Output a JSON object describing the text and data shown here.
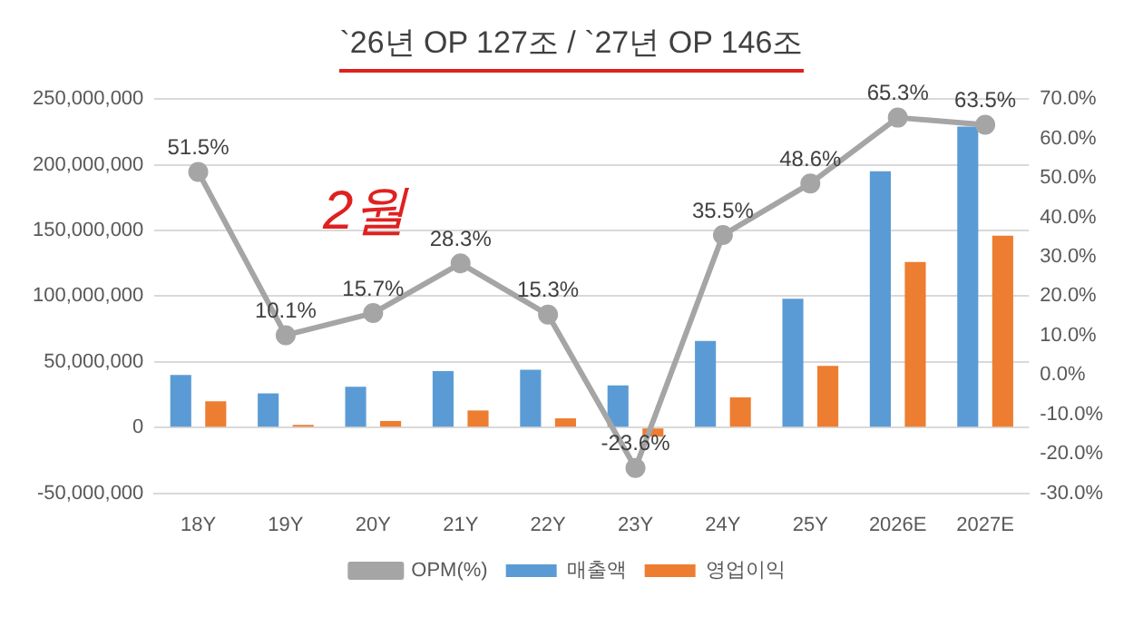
{
  "chart_data": {
    "type": "bar",
    "title": "`26년 OP 127조 / `27년 OP 146조",
    "categories": [
      "18Y",
      "19Y",
      "20Y",
      "21Y",
      "22Y",
      "23Y",
      "24Y",
      "25Y",
      "2026E",
      "2027E"
    ],
    "series": [
      {
        "name": "매출액",
        "color": "#5b9bd5",
        "values": [
          40000000,
          26000000,
          31000000,
          43000000,
          44000000,
          32000000,
          66000000,
          98000000,
          195000000,
          229000000
        ]
      },
      {
        "name": "영업이익",
        "color": "#ed7d31",
        "values": [
          20000000,
          2000000,
          5000000,
          13000000,
          7000000,
          -7000000,
          23000000,
          47000000,
          126000000,
          146000000
        ]
      },
      {
        "name": "OPM(%)",
        "type": "line",
        "axis": "y2",
        "color": "#a5a5a5",
        "marker": "circle",
        "values": [
          51.5,
          10.1,
          15.7,
          28.3,
          15.3,
          -23.6,
          35.5,
          48.6,
          65.3,
          63.5
        ],
        "value_labels": [
          "51.5%",
          "10.1%",
          "15.7%",
          "28.3%",
          "15.3%",
          "-23.6%",
          "35.5%",
          "48.6%",
          "65.3%",
          "63.5%"
        ]
      }
    ],
    "ylim": [
      -50000000,
      250000000
    ],
    "yticks": [
      {
        "value": -50000000,
        "label": "-50,000,000"
      },
      {
        "value": 0,
        "label": "0"
      },
      {
        "value": 50000000,
        "label": "50,000,000"
      },
      {
        "value": 100000000,
        "label": "100,000,000"
      },
      {
        "value": 150000000,
        "label": "150,000,000"
      },
      {
        "value": 200000000,
        "label": "200,000,000"
      },
      {
        "value": 250000000,
        "label": "250,000,000"
      }
    ],
    "y2lim": [
      -30,
      70
    ],
    "y2ticks": [
      {
        "value": -30,
        "label": "-30.0%"
      },
      {
        "value": -20,
        "label": "-20.0%"
      },
      {
        "value": -10,
        "label": "-10.0%"
      },
      {
        "value": 0,
        "label": "0.0%"
      },
      {
        "value": 10,
        "label": "10.0%"
      },
      {
        "value": 20,
        "label": "20.0%"
      },
      {
        "value": 30,
        "label": "30.0%"
      },
      {
        "value": 40,
        "label": "40.0%"
      },
      {
        "value": 50,
        "label": "50.0%"
      },
      {
        "value": 60,
        "label": "60.0%"
      },
      {
        "value": 70,
        "label": "70.0%"
      }
    ],
    "grid": "y",
    "legend": "bottom",
    "annotations": [
      "2월"
    ]
  }
}
